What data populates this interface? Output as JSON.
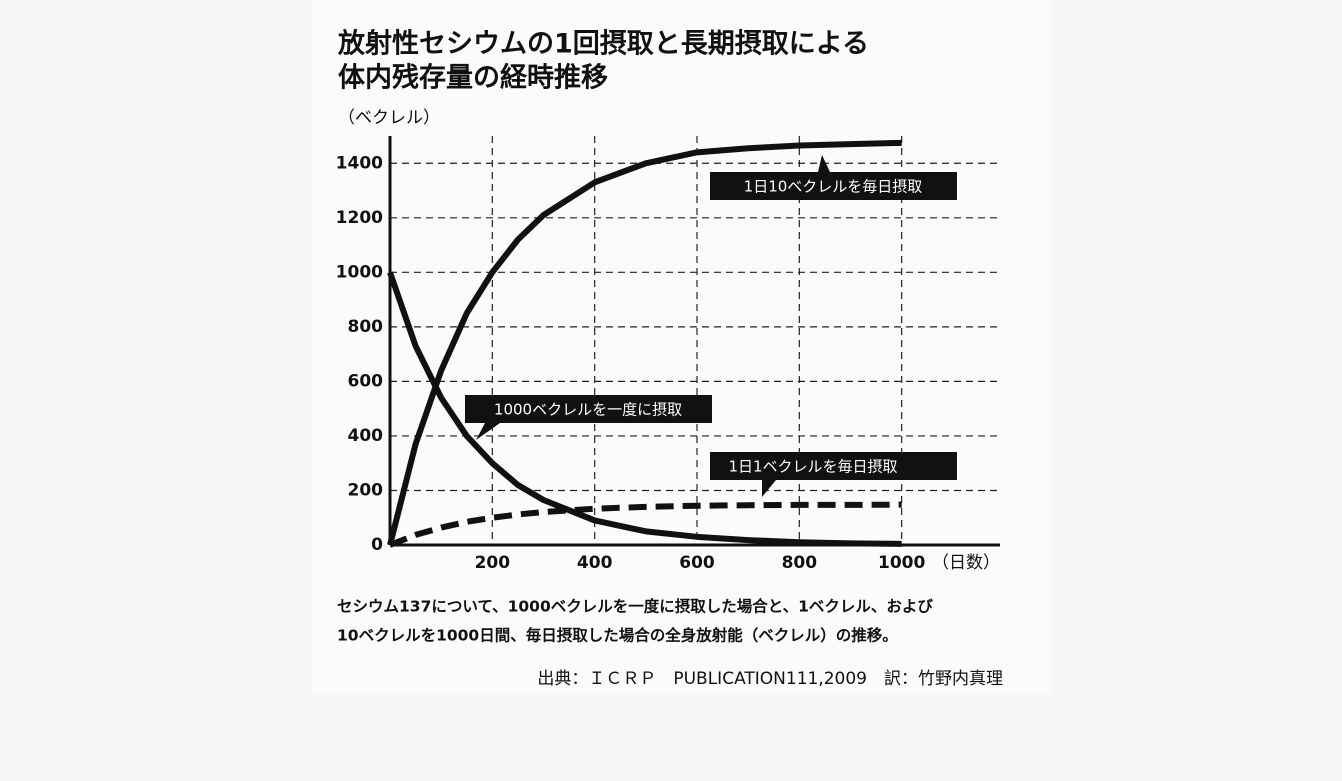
{
  "chart_data": {
    "type": "line",
    "title": [
      "放射性セシウムの1回摂取と長期摂取による",
      "体内残存量の経時推移"
    ],
    "y_label": "（ベクレル）",
    "x_label": "（日数）",
    "x": [
      0,
      50,
      100,
      150,
      200,
      250,
      300,
      400,
      500,
      600,
      700,
      800,
      900,
      1000
    ],
    "series": [
      {
        "name": "1日10ベクレルを毎日摂取",
        "color": "#111111",
        "line_style": "solid",
        "values": [
          0,
          370,
          640,
          850,
          1000,
          1120,
          1210,
          1330,
          1400,
          1440,
          1455,
          1465,
          1470,
          1475
        ]
      },
      {
        "name": "1000ベクレルを一度に摂取",
        "color": "#111111",
        "line_style": "solid",
        "values": [
          1000,
          730,
          540,
          400,
          300,
          220,
          165,
          90,
          50,
          30,
          18,
          10,
          6,
          4
        ]
      },
      {
        "name": "1日1ベクレルを毎日摂取",
        "color": "#111111",
        "line_style": "dashed",
        "values": [
          0,
          37,
          64,
          85,
          100,
          112,
          121,
          133,
          140,
          144,
          146,
          147,
          147,
          148
        ]
      }
    ],
    "xlim": [
      0,
      1200
    ],
    "xticks": [
      200,
      400,
      600,
      800,
      1000
    ],
    "ylim": [
      0,
      1500
    ],
    "yticks": [
      0,
      200,
      400,
      600,
      800,
      1000,
      1200,
      1400
    ],
    "grid": true,
    "caption": [
      "セシウム137について、1000ベクレルを一度に摂取した場合と、1ベクレル、および",
      "10ベクレルを1000日間、毎日摂取した場合の全身放射能（ベクレル）の推移。"
    ],
    "source": "出典：ＩＣＲＰ　PUBLICATION111,2009　訳：竹野内真理"
  }
}
